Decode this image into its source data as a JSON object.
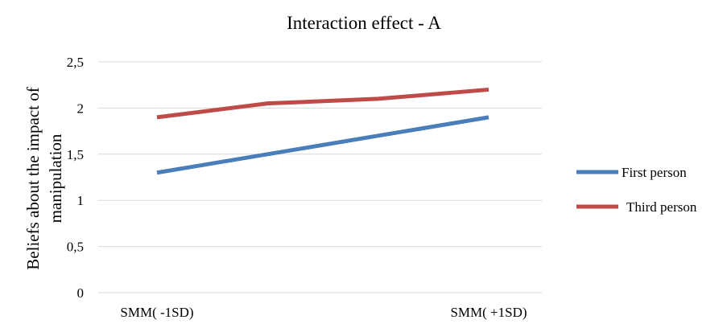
{
  "chart_data": {
    "type": "line",
    "title": "Interaction effect - A",
    "xlabel": "",
    "ylabel_lines": [
      "Beliefs about the impact of",
      "manipulation"
    ],
    "categories": [
      "SMM( -1SD)",
      "SMM( +1SD)"
    ],
    "x": [
      0,
      1,
      2,
      3
    ],
    "ylim": [
      0,
      2.5
    ],
    "yticks": [
      "0",
      "0,5",
      "1",
      "1,5",
      "2",
      "2,5"
    ],
    "yticks_values": [
      0,
      0.5,
      1,
      1.5,
      2,
      2.5
    ],
    "grid": true,
    "legend_position": "right",
    "series": [
      {
        "name": "First person",
        "color": "#4a7ebb",
        "values": [
          1.3,
          1.5,
          1.7,
          1.9
        ]
      },
      {
        "name": "Third person",
        "color": "#be4b48",
        "values": [
          1.9,
          2.05,
          2.1,
          2.2
        ]
      }
    ]
  }
}
